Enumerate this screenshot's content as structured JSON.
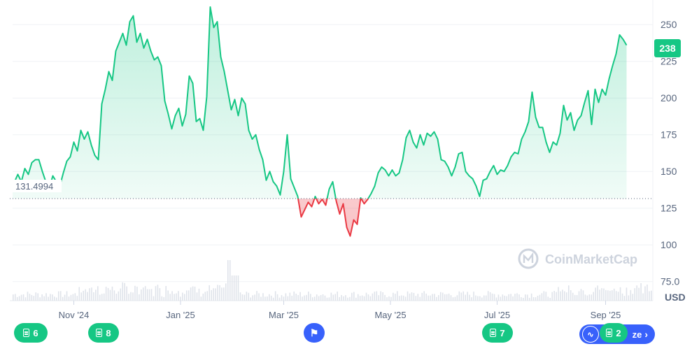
{
  "chart_data": {
    "type": "area",
    "currency_label": "USD",
    "current_price_label": "238",
    "baseline_label": "131.4994",
    "baseline_value": 131.4994,
    "watermark": "CoinMarketCap",
    "ylim": [
      62,
      262
    ],
    "y_ticks": [
      {
        "value": 250,
        "label": "250"
      },
      {
        "value": 225,
        "label": "225"
      },
      {
        "value": 200,
        "label": "200"
      },
      {
        "value": 175,
        "label": "175"
      },
      {
        "value": 150,
        "label": "150"
      },
      {
        "value": 125,
        "label": "125"
      },
      {
        "value": 100,
        "label": "100"
      },
      {
        "value": 75,
        "label": "75.0"
      }
    ],
    "x_domain": [
      "2024-09-27",
      "2025-09-28"
    ],
    "x_ticks": [
      {
        "date": "2024-11-01",
        "label": "Nov '24"
      },
      {
        "date": "2025-01-01",
        "label": "Jan '25"
      },
      {
        "date": "2025-03-01",
        "label": "Mar '25"
      },
      {
        "date": "2025-05-01",
        "label": "May '25"
      },
      {
        "date": "2025-07-01",
        "label": "Jul '25"
      },
      {
        "date": "2025-09-01",
        "label": "Sep '25"
      }
    ],
    "series": [
      {
        "points": [
          [
            "2024-09-27",
            140
          ],
          [
            "2024-09-30",
            148
          ],
          [
            "2024-10-02",
            143
          ],
          [
            "2024-10-04",
            152
          ],
          [
            "2024-10-06",
            148
          ],
          [
            "2024-10-08",
            156
          ],
          [
            "2024-10-10",
            158
          ],
          [
            "2024-10-12",
            158
          ],
          [
            "2024-10-14",
            150
          ],
          [
            "2024-10-16",
            143
          ],
          [
            "2024-10-18",
            139
          ],
          [
            "2024-10-20",
            147
          ],
          [
            "2024-10-22",
            143
          ],
          [
            "2024-10-24",
            140
          ],
          [
            "2024-10-26",
            149
          ],
          [
            "2024-10-28",
            157
          ],
          [
            "2024-10-30",
            160
          ],
          [
            "2024-11-01",
            170
          ],
          [
            "2024-11-03",
            164
          ],
          [
            "2024-11-05",
            178
          ],
          [
            "2024-11-07",
            172
          ],
          [
            "2024-11-09",
            177
          ],
          [
            "2024-11-11",
            168
          ],
          [
            "2024-11-13",
            161
          ],
          [
            "2024-11-15",
            158
          ],
          [
            "2024-11-17",
            196
          ],
          [
            "2024-11-19",
            206
          ],
          [
            "2024-11-21",
            218
          ],
          [
            "2024-11-23",
            212
          ],
          [
            "2024-11-25",
            232
          ],
          [
            "2024-11-27",
            238
          ],
          [
            "2024-11-29",
            244
          ],
          [
            "2024-12-01",
            236
          ],
          [
            "2024-12-03",
            252
          ],
          [
            "2024-12-05",
            256
          ],
          [
            "2024-12-07",
            238
          ],
          [
            "2024-12-09",
            244
          ],
          [
            "2024-12-11",
            234
          ],
          [
            "2024-12-13",
            240
          ],
          [
            "2024-12-15",
            232
          ],
          [
            "2024-12-17",
            226
          ],
          [
            "2024-12-19",
            228
          ],
          [
            "2024-12-21",
            222
          ],
          [
            "2024-12-23",
            198
          ],
          [
            "2024-12-25",
            189
          ],
          [
            "2024-12-27",
            179
          ],
          [
            "2024-12-29",
            188
          ],
          [
            "2024-12-31",
            193
          ],
          [
            "2025-01-02",
            181
          ],
          [
            "2025-01-04",
            189
          ],
          [
            "2025-01-06",
            215
          ],
          [
            "2025-01-08",
            210
          ],
          [
            "2025-01-10",
            184
          ],
          [
            "2025-01-12",
            186
          ],
          [
            "2025-01-14",
            178
          ],
          [
            "2025-01-16",
            201
          ],
          [
            "2025-01-18",
            262
          ],
          [
            "2025-01-20",
            248
          ],
          [
            "2025-01-22",
            252
          ],
          [
            "2025-01-24",
            228
          ],
          [
            "2025-01-26",
            218
          ],
          [
            "2025-01-28",
            205
          ],
          [
            "2025-01-30",
            192
          ],
          [
            "2025-02-01",
            199
          ],
          [
            "2025-02-03",
            188
          ],
          [
            "2025-02-05",
            200
          ],
          [
            "2025-02-07",
            196
          ],
          [
            "2025-02-09",
            178
          ],
          [
            "2025-02-11",
            172
          ],
          [
            "2025-02-13",
            175
          ],
          [
            "2025-02-15",
            165
          ],
          [
            "2025-02-17",
            158
          ],
          [
            "2025-02-19",
            144
          ],
          [
            "2025-02-21",
            150
          ],
          [
            "2025-02-23",
            143
          ],
          [
            "2025-02-25",
            140
          ],
          [
            "2025-02-27",
            134
          ],
          [
            "2025-03-01",
            150
          ],
          [
            "2025-03-03",
            175
          ],
          [
            "2025-03-05",
            145
          ],
          [
            "2025-03-07",
            139
          ],
          [
            "2025-03-09",
            133
          ],
          [
            "2025-03-11",
            119
          ],
          [
            "2025-03-13",
            124
          ],
          [
            "2025-03-15",
            129
          ],
          [
            "2025-03-17",
            126
          ],
          [
            "2025-03-19",
            133
          ],
          [
            "2025-03-21",
            128
          ],
          [
            "2025-03-23",
            131
          ],
          [
            "2025-03-25",
            127
          ],
          [
            "2025-03-27",
            138
          ],
          [
            "2025-03-29",
            143
          ],
          [
            "2025-03-31",
            130
          ],
          [
            "2025-04-02",
            121
          ],
          [
            "2025-04-04",
            128
          ],
          [
            "2025-04-06",
            112
          ],
          [
            "2025-04-08",
            106
          ],
          [
            "2025-04-10",
            117
          ],
          [
            "2025-04-12",
            114
          ],
          [
            "2025-04-14",
            132
          ],
          [
            "2025-04-16",
            128
          ],
          [
            "2025-04-18",
            131
          ],
          [
            "2025-04-20",
            135
          ],
          [
            "2025-04-22",
            140
          ],
          [
            "2025-04-24",
            149
          ],
          [
            "2025-04-26",
            153
          ],
          [
            "2025-04-28",
            151
          ],
          [
            "2025-04-30",
            147
          ],
          [
            "2025-05-02",
            151
          ],
          [
            "2025-05-04",
            147
          ],
          [
            "2025-05-06",
            149
          ],
          [
            "2025-05-08",
            158
          ],
          [
            "2025-05-10",
            173
          ],
          [
            "2025-05-12",
            178
          ],
          [
            "2025-05-14",
            170
          ],
          [
            "2025-05-16",
            166
          ],
          [
            "2025-05-18",
            175
          ],
          [
            "2025-05-20",
            168
          ],
          [
            "2025-05-22",
            176
          ],
          [
            "2025-05-24",
            174
          ],
          [
            "2025-05-26",
            177
          ],
          [
            "2025-05-28",
            172
          ],
          [
            "2025-05-30",
            158
          ],
          [
            "2025-06-01",
            157
          ],
          [
            "2025-06-03",
            153
          ],
          [
            "2025-06-05",
            147
          ],
          [
            "2025-06-07",
            153
          ],
          [
            "2025-06-09",
            162
          ],
          [
            "2025-06-11",
            163
          ],
          [
            "2025-06-13",
            150
          ],
          [
            "2025-06-15",
            147
          ],
          [
            "2025-06-17",
            145
          ],
          [
            "2025-06-19",
            140
          ],
          [
            "2025-06-21",
            133
          ],
          [
            "2025-06-23",
            144
          ],
          [
            "2025-06-25",
            145
          ],
          [
            "2025-06-27",
            150
          ],
          [
            "2025-06-29",
            154
          ],
          [
            "2025-07-01",
            148
          ],
          [
            "2025-07-03",
            151
          ],
          [
            "2025-07-05",
            150
          ],
          [
            "2025-07-07",
            154
          ],
          [
            "2025-07-09",
            160
          ],
          [
            "2025-07-11",
            163
          ],
          [
            "2025-07-13",
            162
          ],
          [
            "2025-07-15",
            172
          ],
          [
            "2025-07-17",
            177
          ],
          [
            "2025-07-19",
            184
          ],
          [
            "2025-07-21",
            204
          ],
          [
            "2025-07-23",
            187
          ],
          [
            "2025-07-25",
            180
          ],
          [
            "2025-07-27",
            180
          ],
          [
            "2025-07-29",
            170
          ],
          [
            "2025-07-31",
            163
          ],
          [
            "2025-08-02",
            170
          ],
          [
            "2025-08-04",
            168
          ],
          [
            "2025-08-06",
            176
          ],
          [
            "2025-08-08",
            195
          ],
          [
            "2025-08-10",
            185
          ],
          [
            "2025-08-12",
            190
          ],
          [
            "2025-08-14",
            178
          ],
          [
            "2025-08-16",
            185
          ],
          [
            "2025-08-18",
            188
          ],
          [
            "2025-08-20",
            197
          ],
          [
            "2025-08-22",
            205
          ],
          [
            "2025-08-24",
            182
          ],
          [
            "2025-08-26",
            206
          ],
          [
            "2025-08-28",
            197
          ],
          [
            "2025-08-30",
            206
          ],
          [
            "2025-09-01",
            202
          ],
          [
            "2025-09-03",
            213
          ],
          [
            "2025-09-05",
            222
          ],
          [
            "2025-09-07",
            230
          ],
          [
            "2025-09-09",
            243
          ],
          [
            "2025-09-11",
            240
          ],
          [
            "2025-09-13",
            236
          ]
        ]
      }
    ],
    "volume_bars_count": 310,
    "event_pills": [
      {
        "label": "6",
        "kind": "doc"
      },
      {
        "label": "8",
        "kind": "doc"
      },
      {
        "label": "",
        "kind": "flag"
      },
      {
        "label": "7",
        "kind": "doc"
      },
      {
        "label": "2",
        "kind": "doc"
      },
      {
        "label": "ze",
        "kind": "summary"
      }
    ]
  }
}
